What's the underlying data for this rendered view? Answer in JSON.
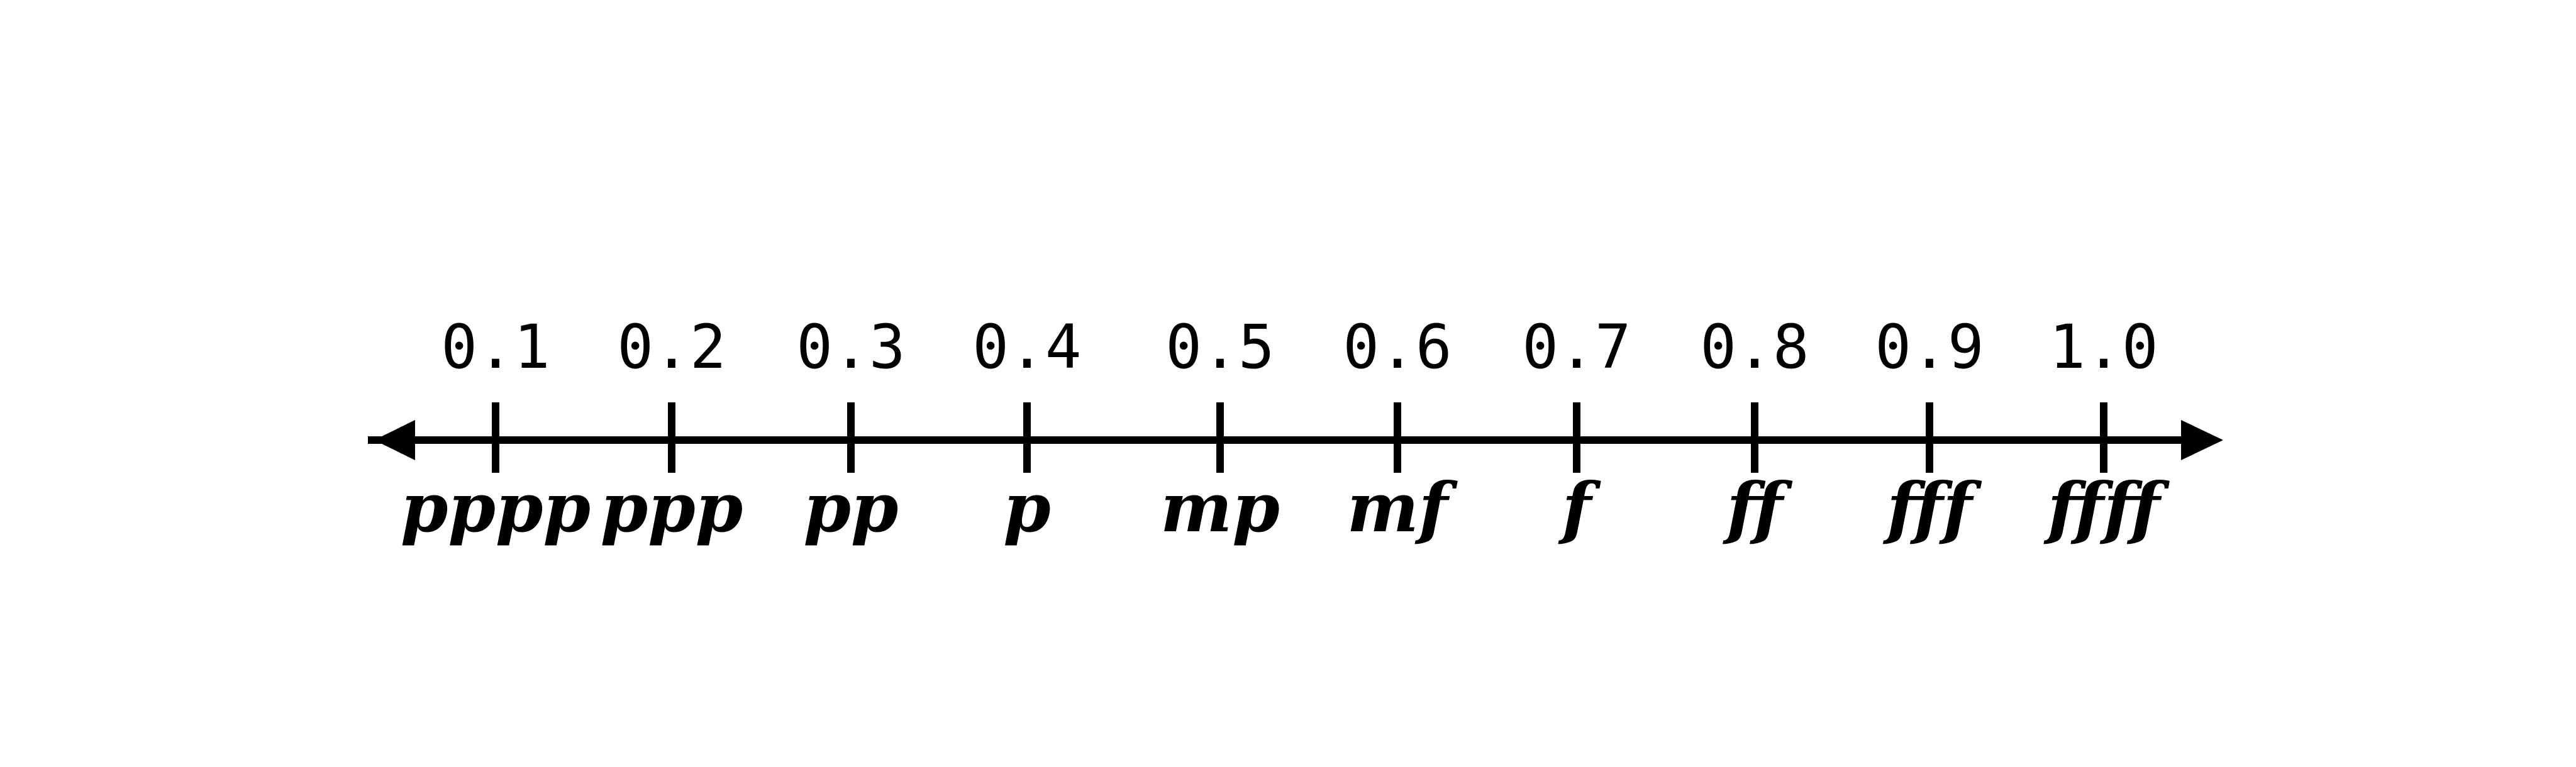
{
  "scale": {
    "colors": {
      "line": "#000000",
      "background": "#ffffff"
    },
    "ticks": [
      {
        "value": "0.1",
        "dynamic": "pppp"
      },
      {
        "value": "0.2",
        "dynamic": "ppp"
      },
      {
        "value": "0.3",
        "dynamic": "pp"
      },
      {
        "value": "0.4",
        "dynamic": "p"
      },
      {
        "value": "0.5",
        "dynamic": "mp"
      },
      {
        "value": "0.6",
        "dynamic": "mf"
      },
      {
        "value": "0.7",
        "dynamic": "f"
      },
      {
        "value": "0.8",
        "dynamic": "ff"
      },
      {
        "value": "0.9",
        "dynamic": "fff"
      },
      {
        "value": "1.0",
        "dynamic": "ffff"
      }
    ]
  }
}
